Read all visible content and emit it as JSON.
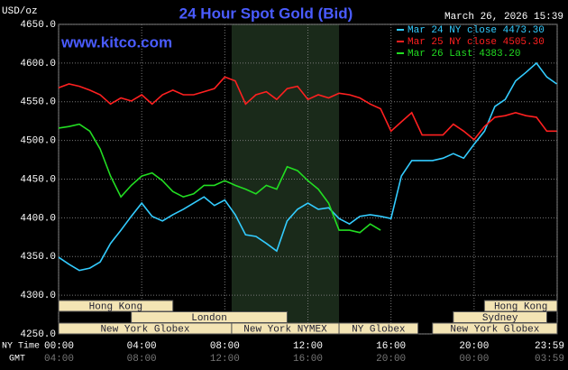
{
  "chart_data": {
    "type": "line",
    "title": "24 Hour Spot Gold (Bid)",
    "subtitle": "March 26, 2026 15:39",
    "source": "www.kitco.com",
    "y_label": "USD/oz",
    "x_label": "NY Time",
    "x2_label": "GMT",
    "xlim": [
      0,
      24
    ],
    "ylim": [
      4250,
      4650
    ],
    "grid": true,
    "yticks": [
      {
        "value": 4250,
        "label": "4250.0"
      },
      {
        "value": 4300,
        "label": "4300.0"
      },
      {
        "value": 4350,
        "label": "4350.0"
      },
      {
        "value": 4400,
        "label": "4400.0"
      },
      {
        "value": 4450,
        "label": "4450.0"
      },
      {
        "value": 4500,
        "label": "4500.0"
      },
      {
        "value": 4550,
        "label": "4550.0"
      },
      {
        "value": 4600,
        "label": "4600.0"
      },
      {
        "value": 4650,
        "label": "4650.0"
      }
    ],
    "xticks": [
      {
        "value": 0,
        "label": "00:00"
      },
      {
        "value": 4,
        "label": "04:00"
      },
      {
        "value": 8,
        "label": "08:00"
      },
      {
        "value": 12,
        "label": "12:00"
      },
      {
        "value": 16,
        "label": "16:00"
      },
      {
        "value": 20,
        "label": "20:00"
      },
      {
        "value": 24,
        "label": "23:59"
      }
    ],
    "x2ticks": [
      {
        "value": 0,
        "label": "04:00"
      },
      {
        "value": 4,
        "label": "08:00"
      },
      {
        "value": 8,
        "label": "12:00"
      },
      {
        "value": 12,
        "label": "16:00"
      },
      {
        "value": 16,
        "label": "20:00"
      },
      {
        "value": 20,
        "label": "00:00"
      },
      {
        "value": 24,
        "label": "03:59"
      }
    ],
    "sessions": [
      {
        "label": "Hong Kong",
        "start": 0,
        "end": 5.5
      },
      {
        "label": "Hong Kong",
        "start": 20.5,
        "end": 24
      },
      {
        "label": "London",
        "start": 3.5,
        "end": 11
      },
      {
        "label": "Sydney",
        "start": 19,
        "end": 23.5
      },
      {
        "label": "New York Globex",
        "start": 0,
        "end": 8.33
      },
      {
        "label": "New York NYMEX",
        "start": 8.33,
        "end": 13.5
      },
      {
        "label": "NY Globex",
        "start": 13.5,
        "end": 17.3
      },
      {
        "label": "New York Globex",
        "start": 18,
        "end": 24
      }
    ],
    "x": [
      0,
      0.5,
      1,
      1.5,
      2,
      2.5,
      3,
      3.5,
      4,
      4.5,
      5,
      5.5,
      6,
      6.5,
      7,
      7.5,
      8,
      8.5,
      9,
      9.5,
      10,
      10.5,
      11,
      11.5,
      12,
      12.5,
      13,
      13.5,
      14,
      14.5,
      15,
      15.5,
      16,
      16.5,
      17,
      17.5,
      18,
      18.5,
      19,
      19.5,
      20,
      20.5,
      21,
      21.5,
      22,
      22.5,
      23,
      23.5,
      23.98
    ],
    "series": [
      {
        "name": "Mar 24 NY close 4473.30",
        "color": "#33ccff",
        "values": [
          4349,
          4340,
          4332,
          4335,
          4343,
          4367,
          4384,
          4402,
          4419,
          4402,
          4396,
          4404,
          4411,
          4419,
          4427,
          4416,
          4423,
          4404,
          4378,
          4376,
          4367,
          4357,
          4396,
          4411,
          4419,
          4411,
          4413,
          4399,
          4392,
          4402,
          4404,
          4402,
          4399,
          4454,
          4474,
          4474,
          4474,
          4477,
          4483,
          4477,
          4495,
          4512,
          4544,
          4553,
          4577,
          4588,
          4600,
          4582,
          4573
        ]
      },
      {
        "name": "Mar 25 NY close 4505.30",
        "color": "#ff2020",
        "values": [
          4568,
          4573,
          4570,
          4565,
          4559,
          4547,
          4555,
          4551,
          4559,
          4547,
          4559,
          4565,
          4559,
          4559,
          4563,
          4567,
          4582,
          4577,
          4547,
          4559,
          4563,
          4553,
          4567,
          4570,
          4553,
          4559,
          4555,
          4561,
          4559,
          4555,
          4547,
          4541,
          4512,
          4524,
          4536,
          4507,
          4507,
          4507,
          4521,
          4512,
          4501,
          4518,
          4530,
          4532,
          4536,
          4532,
          4530,
          4512,
          4512
        ]
      },
      {
        "name": "Mar 26 Last 4383.20",
        "color": "#22dd22",
        "values": [
          4516,
          4518,
          4521,
          4512,
          4489,
          4454,
          4427,
          4442,
          4454,
          4458,
          4448,
          4434,
          4427,
          4431,
          4442,
          4442,
          4448,
          4442,
          4437,
          4431,
          4442,
          4437,
          4466,
          4461,
          4448,
          4437,
          4419,
          4384,
          4384,
          4381,
          4392,
          4384,
          null,
          null,
          null,
          null,
          null,
          null,
          null,
          null,
          null,
          null,
          null,
          null,
          null,
          null,
          null,
          null,
          null
        ]
      }
    ]
  }
}
